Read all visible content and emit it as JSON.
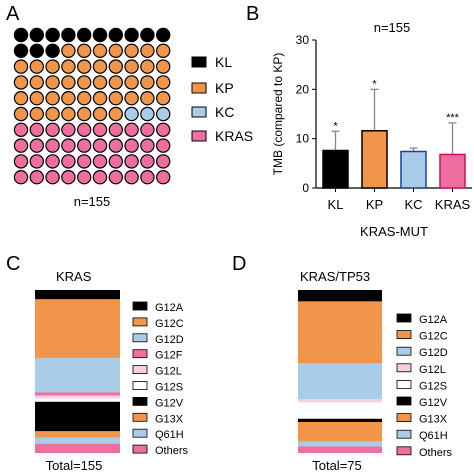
{
  "colors": {
    "KL": "#000000",
    "KP": "#f0954a",
    "KC": "#a9cce9",
    "KRAS": "#ee6f9f",
    "G12A": "#000000",
    "G12C": "#f0954a",
    "G12D": "#a9cce9",
    "G12F": "#ee6f9f",
    "G12L": "#f7cde0",
    "G12S": "#ffffff",
    "G12V": "#000000",
    "G13X": "#f0954a",
    "Q61H": "#a9cce9",
    "Others": "#ee6f9f",
    "barKL": "#000000",
    "barKP": "#f0954a",
    "barKC": "#a9cce9",
    "barKRAS": "#ee6f9f",
    "outlineKC": "#1f3fa0",
    "outlineKRAS": "#c4145a",
    "error": "#888888"
  },
  "panels": {
    "A": {
      "letter": "A",
      "caption": "n=155"
    },
    "B": {
      "letter": "B"
    },
    "C": {
      "letter": "C",
      "title": "KRAS",
      "total": "Total=155"
    },
    "D": {
      "letter": "D",
      "title": "KRAS/TP53",
      "total": "Total=75"
    }
  },
  "chart_data": [
    {
      "panel": "A",
      "type": "waffle",
      "grid": {
        "rows": 10,
        "cols": 10
      },
      "categories": [
        "KL",
        "KP",
        "KC",
        "KRAS"
      ],
      "cell_counts": [
        13,
        44,
        3,
        40
      ],
      "legend": [
        "KL",
        "KP",
        "KC",
        "KRAS"
      ],
      "legend_placement": "right",
      "caption": "n=155"
    },
    {
      "panel": "B",
      "type": "bar",
      "title": "n=155",
      "categories": [
        "KL",
        "KP",
        "KC",
        "KRAS"
      ],
      "values": [
        7.6,
        11.6,
        7.4,
        6.8
      ],
      "error_upper": [
        11.5,
        20.0,
        8.1,
        13.2
      ],
      "annotations": [
        "*",
        "*",
        "",
        "***"
      ],
      "ylabel": "TMB (compared to KP)",
      "xlabel": "KRAS-MUT",
      "ylim": [
        0,
        30
      ],
      "yticks": [
        0,
        10,
        20,
        30
      ],
      "grid": false
    },
    {
      "panel": "C",
      "type": "stacked-bar",
      "title": "KRAS",
      "total": "Total=155",
      "segments_top_to_bottom": [
        {
          "name": "G12A",
          "value": 6
        },
        {
          "name": "G12C",
          "value": 38
        },
        {
          "name": "G12D",
          "value": 22
        },
        {
          "name": "G12F",
          "value": 2
        },
        {
          "name": "G12L",
          "value": 2
        },
        {
          "name": "G12S",
          "value": 2
        },
        {
          "name": "G12V",
          "value": 19
        },
        {
          "name": "G13X",
          "value": 4
        },
        {
          "name": "Q61H",
          "value": 4
        },
        {
          "name": "Others",
          "value": 6
        }
      ],
      "legend": [
        "G12A",
        "G12C",
        "G12D",
        "G12F",
        "G12L",
        "G12S",
        "G12V",
        "G13X",
        "Q61H",
        "Others"
      ],
      "legend_placement": "right"
    },
    {
      "panel": "D",
      "type": "stacked-bar",
      "title": "KRAS/TP53",
      "total": "Total=75",
      "segments_top_to_bottom": [
        {
          "name": "G12A",
          "value": 7
        },
        {
          "name": "G12C",
          "value": 38
        },
        {
          "name": "G12D",
          "value": 22
        },
        {
          "name": "G12L",
          "value": 2
        },
        {
          "name": "G12S",
          "value": 10
        },
        {
          "name": "G12V",
          "value": 2
        },
        {
          "name": "G13X",
          "value": 12
        },
        {
          "name": "Q61H",
          "value": 3
        },
        {
          "name": "Others",
          "value": 4
        }
      ],
      "legend": [
        "G12A",
        "G12C",
        "G12D",
        "G12L",
        "G12S",
        "G12V",
        "G13X",
        "Q61H",
        "Others"
      ],
      "legend_placement": "right"
    }
  ]
}
